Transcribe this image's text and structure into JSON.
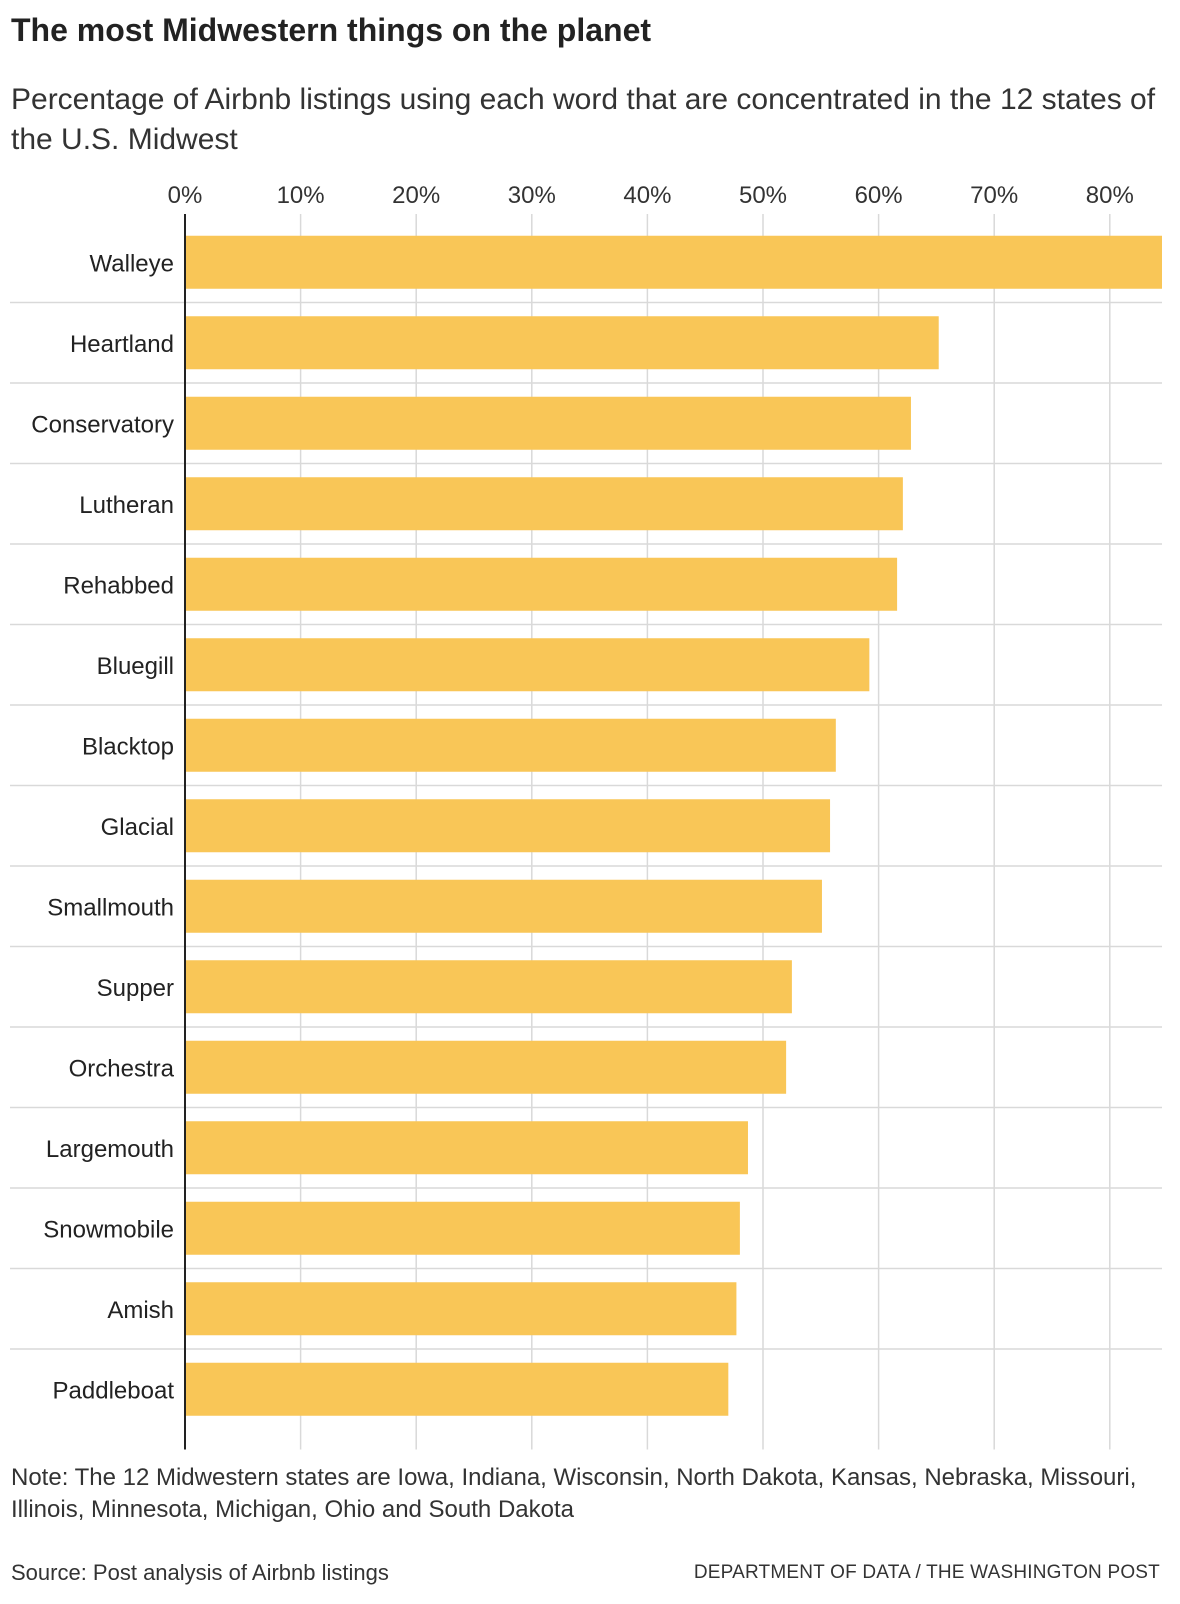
{
  "header": {
    "title": "The most Midwestern things on the planet",
    "subtitle": "Percentage of Airbnb listings using each word that are concentrated in the 12 states of the U.S. Midwest"
  },
  "footer": {
    "note": "Note: The 12 Midwestern states are Iowa, Indiana, Wisconsin, North Dakota, Kansas, Nebraska, Missouri, Illinois, Minnesota, Michigan, Ohio and South Dakota",
    "source": "Source: Post analysis of Airbnb listings",
    "credit": "DEPARTMENT OF DATA / THE WASHINGTON POST"
  },
  "colors": {
    "bar": "#F9C657",
    "grid": "#d9d9d9",
    "axis": "#222222",
    "text": "#222222"
  },
  "chart_data": {
    "type": "bar",
    "orientation": "horizontal",
    "title": "The most Midwestern things on the planet",
    "subtitle": "Percentage of Airbnb listings using each word that are concentrated in the 12 states of the U.S. Midwest",
    "categories": [
      "Walleye",
      "Heartland",
      "Conservatory",
      "Lutheran",
      "Rehabbed",
      "Bluegill",
      "Blacktop",
      "Glacial",
      "Smallmouth",
      "Supper",
      "Orchestra",
      "Largemouth",
      "Snowmobile",
      "Amish",
      "Paddleboat"
    ],
    "values": [
      85,
      65.2,
      62.8,
      62.1,
      61.6,
      59.2,
      56.3,
      55.8,
      55.1,
      52.5,
      52.0,
      48.7,
      48.0,
      47.7,
      47.0
    ],
    "xlim": [
      0,
      84.5
    ],
    "xticks": [
      0,
      10,
      20,
      30,
      40,
      50,
      60,
      70,
      80
    ],
    "xtick_labels": [
      "0%",
      "10%",
      "20%",
      "30%",
      "40%",
      "50%",
      "60%",
      "70%",
      "80%"
    ],
    "grid": true,
    "legend": "none"
  }
}
